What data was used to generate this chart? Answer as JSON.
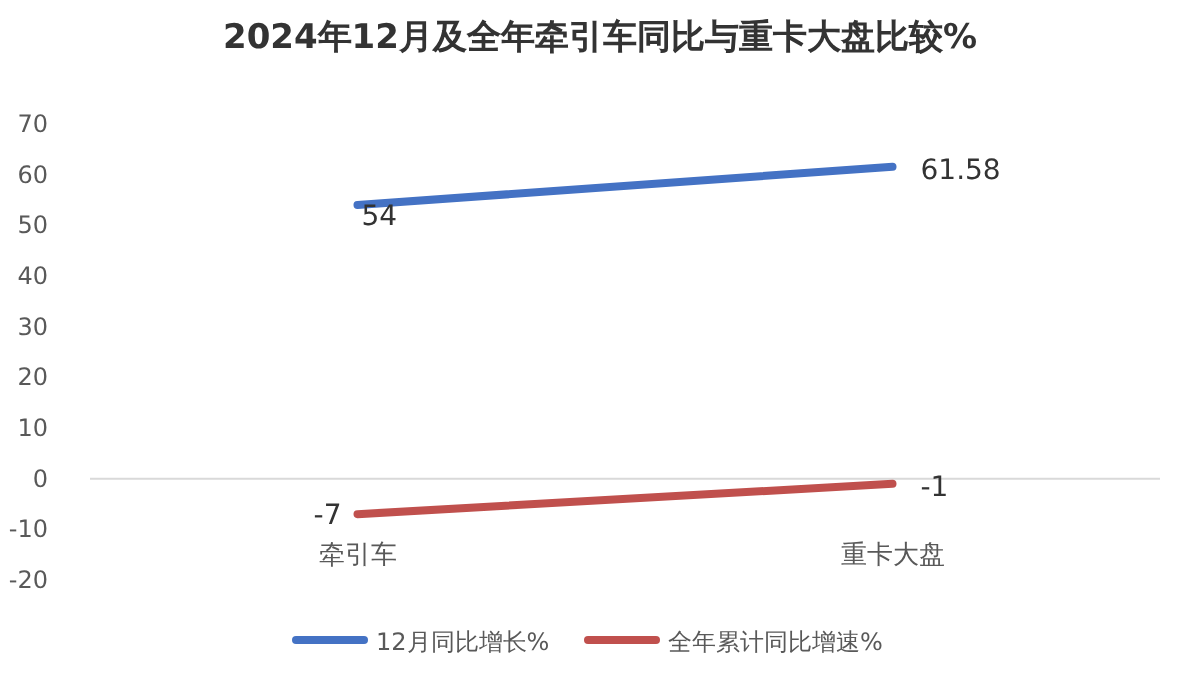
{
  "chart_data": {
    "type": "line",
    "title": "2024年12月及全年牵引车同比与重卡大盘比较%",
    "categories": [
      "牵引车",
      "重卡大盘"
    ],
    "series": [
      {
        "name": "12月同比增长%",
        "color": "#4472c4",
        "values": [
          54,
          61.58
        ]
      },
      {
        "name": "全年累计同比增速%",
        "color": "#c0504d",
        "values": [
          -7,
          -1
        ]
      }
    ],
    "ylim": [
      -20,
      70
    ],
    "yticks": [
      -20,
      -10,
      0,
      10,
      20,
      30,
      40,
      50,
      60,
      70
    ],
    "grid": false,
    "legend": "bottom",
    "data_labels": true,
    "marker": "none",
    "line_style": "solid"
  }
}
